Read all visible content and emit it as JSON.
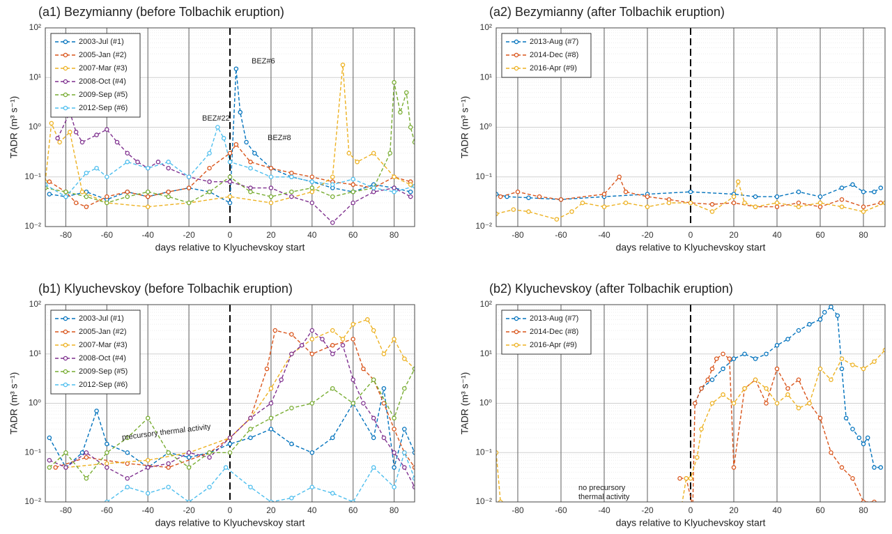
{
  "chart_data": [
    {
      "type": "line",
      "title": "(a1) Bezymianny (before Tolbachik eruption)",
      "x_label": "days relative to Klyuchevskoy start",
      "y_label": "TADR (m³ s⁻¹)",
      "xlim": [
        -90,
        90
      ],
      "xticks": [
        -80,
        -60,
        -40,
        -20,
        0,
        20,
        40,
        60,
        80
      ],
      "ylim": [
        0.01,
        100
      ],
      "log_y": true,
      "yticks": [
        {
          "value": 0.01,
          "label": "10⁻²"
        },
        {
          "value": 0.1,
          "label": "10⁻¹"
        },
        {
          "value": 1,
          "label": "10⁰"
        },
        {
          "value": 10,
          "label": "10¹"
        },
        {
          "value": 100,
          "label": "10²"
        }
      ],
      "grid": true,
      "legend": "upper left",
      "annotations": [
        {
          "text": "BEZ#6",
          "color": "#0072BD"
        },
        {
          "text": "BEZ#22",
          "color": "#4DBEEE"
        },
        {
          "text": "BEZ#8",
          "color": "#D95319"
        }
      ],
      "series": [
        {
          "name": "2003-Jul (#1)",
          "color": "#0072BD",
          "x": [
            -88,
            -80,
            -70,
            -60,
            -50,
            -40,
            -30,
            -20,
            -10,
            0,
            3,
            5,
            8,
            12,
            20,
            30,
            40,
            50,
            60,
            70,
            80,
            88
          ],
          "values": [
            0.045,
            0.04,
            0.05,
            0.035,
            0.05,
            0.04,
            0.05,
            0.06,
            0.05,
            0.03,
            15,
            2,
            0.5,
            0.3,
            0.15,
            0.1,
            0.08,
            0.06,
            0.05,
            0.07,
            0.06,
            0.05
          ]
        },
        {
          "name": "2005-Jan (#2)",
          "color": "#D95319",
          "x": [
            -88,
            -80,
            -75,
            -70,
            -60,
            -50,
            -40,
            -30,
            -20,
            -10,
            0,
            3,
            10,
            20,
            30,
            40,
            50,
            60,
            70,
            80,
            88
          ],
          "values": [
            0.08,
            0.05,
            0.03,
            0.025,
            0.04,
            0.05,
            0.04,
            0.05,
            0.06,
            0.15,
            0.3,
            0.45,
            0.2,
            0.15,
            0.12,
            0.1,
            0.08,
            0.07,
            0.06,
            0.1,
            0.08
          ]
        },
        {
          "name": "2007-Mar (#3)",
          "color": "#EDB120",
          "x": [
            -90,
            -87,
            -83,
            -78,
            -72,
            -60,
            -40,
            -20,
            0,
            20,
            40,
            50,
            55,
            58,
            62,
            70,
            80,
            88
          ],
          "values": [
            0.08,
            1.2,
            0.5,
            0.8,
            0.05,
            0.03,
            0.025,
            0.03,
            0.04,
            0.03,
            0.05,
            0.1,
            18,
            0.3,
            0.2,
            0.3,
            0.1,
            0.07
          ]
        },
        {
          "name": "2008-Oct (#4)",
          "color": "#7E2F8E",
          "x": [
            -84,
            -78,
            -75,
            -72,
            -65,
            -60,
            -55,
            -50,
            -45,
            -40,
            -35,
            -30,
            -20,
            -10,
            0,
            10,
            20,
            30,
            40,
            50,
            60,
            70,
            80,
            88
          ],
          "values": [
            0.6,
            2,
            0.8,
            0.5,
            0.7,
            0.9,
            0.5,
            0.3,
            0.2,
            0.15,
            0.2,
            0.15,
            0.1,
            0.08,
            0.08,
            0.06,
            0.06,
            0.04,
            0.03,
            0.012,
            0.03,
            0.05,
            0.06,
            0.04
          ]
        },
        {
          "name": "2009-Sep (#5)",
          "color": "#77AC30",
          "x": [
            -90,
            -80,
            -70,
            -60,
            -50,
            -40,
            -30,
            -20,
            -10,
            0,
            10,
            20,
            30,
            40,
            50,
            60,
            70,
            78,
            80,
            83,
            86,
            88,
            90
          ],
          "values": [
            0.06,
            0.05,
            0.04,
            0.03,
            0.04,
            0.05,
            0.04,
            0.03,
            0.05,
            0.1,
            0.05,
            0.04,
            0.05,
            0.06,
            0.04,
            0.05,
            0.06,
            0.3,
            8,
            2,
            5,
            1,
            0.5
          ]
        },
        {
          "name": "2012-Sep (#6)",
          "color": "#4DBEEE",
          "x": [
            -90,
            -80,
            -70,
            -65,
            -60,
            -50,
            -40,
            -30,
            -20,
            -10,
            -6,
            -3,
            0,
            10,
            20,
            30,
            40,
            50,
            60,
            70,
            80,
            90
          ],
          "values": [
            0.07,
            0.04,
            0.12,
            0.15,
            0.1,
            0.2,
            0.15,
            0.2,
            0.1,
            0.3,
            1,
            0.6,
            0.2,
            0.15,
            0.1,
            0.1,
            0.08,
            0.07,
            0.09,
            0.06,
            0.05,
            0.065
          ]
        }
      ]
    },
    {
      "type": "line",
      "title": "(a2) Bezymianny (after Tolbachik eruption)",
      "x_label": "days relative to Klyuchevskoy start",
      "y_label": "TADR (m³ s⁻¹)",
      "xlim": [
        -90,
        90
      ],
      "xticks": [
        -80,
        -60,
        -40,
        -20,
        0,
        20,
        40,
        60,
        80
      ],
      "ylim": [
        0.01,
        100
      ],
      "log_y": true,
      "yticks": [
        {
          "value": 0.01,
          "label": "10⁻²"
        },
        {
          "value": 0.1,
          "label": "10⁻¹"
        },
        {
          "value": 1,
          "label": "10⁰"
        },
        {
          "value": 10,
          "label": "10¹"
        },
        {
          "value": 100,
          "label": "10²"
        }
      ],
      "grid": true,
      "legend": "upper left",
      "series": [
        {
          "name": "2013-Aug (#7)",
          "color": "#0072BD",
          "x": [
            -90,
            -85,
            -75,
            -60,
            -40,
            -20,
            0,
            20,
            30,
            40,
            50,
            60,
            70,
            75,
            80,
            85,
            88
          ],
          "values": [
            0.045,
            0.04,
            0.038,
            0.035,
            0.04,
            0.045,
            0.05,
            0.045,
            0.04,
            0.04,
            0.05,
            0.04,
            0.06,
            0.07,
            0.05,
            0.05,
            0.06
          ]
        },
        {
          "name": "2014-Dec (#8)",
          "color": "#D95319",
          "x": [
            -88,
            -80,
            -70,
            -60,
            -40,
            -33,
            -30,
            -20,
            -10,
            0,
            10,
            20,
            30,
            40,
            50,
            60,
            70,
            80,
            88
          ],
          "values": [
            0.04,
            0.05,
            0.04,
            0.035,
            0.045,
            0.1,
            0.05,
            0.04,
            0.035,
            0.03,
            0.028,
            0.03,
            0.025,
            0.025,
            0.03,
            0.025,
            0.035,
            0.025,
            0.03
          ]
        },
        {
          "name": "2016-Apr (#9)",
          "color": "#EDB120",
          "x": [
            -90,
            -82,
            -75,
            -62,
            -55,
            -50,
            -40,
            -30,
            -20,
            -10,
            0,
            10,
            20,
            22,
            25,
            30,
            40,
            50,
            60,
            70,
            80,
            90
          ],
          "values": [
            0.018,
            0.022,
            0.02,
            0.014,
            0.02,
            0.03,
            0.025,
            0.03,
            0.025,
            0.03,
            0.03,
            0.02,
            0.04,
            0.08,
            0.03,
            0.025,
            0.03,
            0.025,
            0.03,
            0.025,
            0.02,
            0.03
          ]
        }
      ]
    },
    {
      "type": "line",
      "title": "(b1) Klyuchevskoy (before Tolbachik eruption)",
      "x_label": "days relative to Klyuchevskoy start",
      "y_label": "TADR (m³ s⁻¹)",
      "xlim": [
        -90,
        90
      ],
      "xticks": [
        -80,
        -60,
        -40,
        -20,
        0,
        20,
        40,
        60,
        80
      ],
      "ylim": [
        0.01,
        100
      ],
      "log_y": true,
      "yticks": [
        {
          "value": 0.01,
          "label": "10⁻²"
        },
        {
          "value": 0.1,
          "label": "10⁻¹"
        },
        {
          "value": 1,
          "label": "10⁰"
        },
        {
          "value": 10,
          "label": "10¹"
        },
        {
          "value": 100,
          "label": "10²"
        }
      ],
      "grid": true,
      "legend": "upper left",
      "annotations": [
        {
          "text": "precursory thermal activity",
          "color": "#222222"
        }
      ],
      "series": [
        {
          "name": "2003-Jul (#1)",
          "color": "#0072BD",
          "x": [
            -88,
            -80,
            -72,
            -65,
            -60,
            -50,
            -40,
            -30,
            -20,
            -10,
            0,
            10,
            20,
            30,
            40,
            50,
            60,
            70,
            75,
            80,
            85,
            90
          ],
          "values": [
            0.2,
            0.05,
            0.1,
            0.7,
            0.15,
            0.1,
            0.05,
            0.1,
            0.08,
            0.1,
            0.15,
            0.2,
            0.3,
            0.15,
            0.1,
            0.2,
            1,
            0.2,
            2,
            0.05,
            0.3,
            0.1
          ]
        },
        {
          "name": "2005-Jan (#2)",
          "color": "#D95319",
          "x": [
            -85,
            -70,
            -50,
            -30,
            -10,
            0,
            10,
            18,
            22,
            30,
            40,
            50,
            60,
            65,
            70,
            75,
            80,
            85,
            90
          ],
          "values": [
            0.05,
            0.08,
            0.06,
            0.05,
            0.1,
            0.2,
            0.5,
            5,
            30,
            25,
            10,
            15,
            20,
            5,
            3,
            1,
            0.3,
            0.1,
            0.05
          ]
        },
        {
          "name": "2007-Mar (#3)",
          "color": "#EDB120",
          "x": [
            -80,
            -60,
            -40,
            -20,
            0,
            10,
            20,
            30,
            40,
            50,
            55,
            60,
            67,
            70,
            75,
            80,
            85,
            90
          ],
          "values": [
            0.05,
            0.06,
            0.07,
            0.1,
            0.2,
            0.5,
            2,
            10,
            20,
            30,
            20,
            40,
            50,
            30,
            10,
            20,
            8,
            5
          ]
        },
        {
          "name": "2008-Oct (#4)",
          "color": "#7E2F8E",
          "x": [
            -88,
            -80,
            -70,
            -60,
            -50,
            -40,
            -30,
            -20,
            -10,
            0,
            10,
            20,
            25,
            30,
            35,
            40,
            45,
            50,
            55,
            60,
            65,
            70,
            75,
            80,
            85,
            90
          ],
          "values": [
            0.07,
            0.05,
            0.1,
            0.05,
            0.03,
            0.05,
            0.06,
            0.1,
            0.08,
            0.2,
            0.5,
            1,
            3,
            10,
            15,
            30,
            20,
            10,
            15,
            3,
            1,
            0.5,
            0.2,
            0.1,
            0.05,
            0.02
          ]
        },
        {
          "name": "2009-Sep (#5)",
          "color": "#77AC30",
          "x": [
            -88,
            -80,
            -70,
            -60,
            -50,
            -40,
            -30,
            -20,
            -10,
            0,
            10,
            20,
            30,
            40,
            50,
            60,
            70,
            80,
            85,
            90
          ],
          "values": [
            0.05,
            0.1,
            0.03,
            0.1,
            0.2,
            0.5,
            0.1,
            0.05,
            0.1,
            0.1,
            0.3,
            0.5,
            0.8,
            1,
            2,
            1,
            3,
            0.5,
            2,
            5
          ]
        },
        {
          "name": "2012-Sep (#6)",
          "color": "#4DBEEE",
          "x": [
            -60,
            -50,
            -40,
            -30,
            -20,
            -10,
            -2,
            10,
            20,
            30,
            40,
            50,
            60,
            70,
            80,
            85,
            90
          ],
          "values": [
            0.01,
            0.02,
            0.015,
            0.02,
            0.01,
            0.02,
            0.05,
            0.02,
            0.01,
            0.012,
            0.02,
            0.015,
            0.01,
            0.05,
            0.02,
            0.1,
            0.03
          ]
        }
      ]
    },
    {
      "type": "line",
      "title": "(b2) Klyuchevskoy (after Tolbachik eruption)",
      "x_label": "days relative to Klyuchevskoy start",
      "y_label": "TADR (m³ s⁻¹)",
      "xlim": [
        -90,
        90
      ],
      "xticks": [
        -80,
        -60,
        -40,
        -20,
        0,
        20,
        40,
        60,
        80
      ],
      "ylim": [
        0.01,
        100
      ],
      "log_y": true,
      "yticks": [
        {
          "value": 0.01,
          "label": "10⁻²"
        },
        {
          "value": 0.1,
          "label": "10⁻¹"
        },
        {
          "value": 1,
          "label": "10⁰"
        },
        {
          "value": 10,
          "label": "10¹"
        },
        {
          "value": 100,
          "label": "10²"
        }
      ],
      "grid": true,
      "legend": "upper left",
      "annotations": [
        {
          "lines": [
            "no precursory",
            "thermal activity"
          ],
          "color": "#222222"
        }
      ],
      "series": [
        {
          "name": "2013-Aug (#7)",
          "color": "#0072BD",
          "x": [
            2,
            5,
            10,
            15,
            20,
            25,
            30,
            35,
            40,
            45,
            50,
            55,
            60,
            62,
            65,
            68,
            70,
            72,
            75,
            78,
            80,
            82,
            85,
            88
          ],
          "values": [
            1,
            2,
            3,
            5,
            8,
            10,
            8,
            10,
            15,
            20,
            30,
            40,
            50,
            70,
            90,
            60,
            5,
            0.5,
            0.3,
            0.2,
            0.15,
            0.2,
            0.05,
            0.05
          ]
        },
        {
          "name": "2014-Dec (#8)",
          "color": "#D95319",
          "x": [
            -5,
            -2,
            1,
            2,
            5,
            8,
            10,
            12,
            15,
            18,
            20,
            25,
            30,
            35,
            40,
            45,
            50,
            55,
            60,
            65,
            70,
            75,
            80,
            85,
            90
          ],
          "values": [
            0.03,
            0.03,
            0.008,
            1,
            2,
            3,
            5,
            8,
            10,
            8,
            0.05,
            2,
            3,
            1,
            5,
            2,
            3,
            1,
            0.5,
            0.1,
            0.05,
            0.03,
            0.01,
            0.01,
            0.005
          ]
        },
        {
          "name": "2016-Apr (#9)",
          "color": "#EDB120",
          "x": [
            -90,
            -88,
            -85,
            -5,
            -2,
            0,
            3,
            5,
            10,
            15,
            20,
            25,
            30,
            35,
            40,
            45,
            50,
            55,
            60,
            65,
            70,
            75,
            80,
            85,
            90
          ],
          "values": [
            0.1,
            0.01,
            0.005,
            0.005,
            0.03,
            0.03,
            0.08,
            0.3,
            1,
            1.5,
            1,
            2,
            3,
            2,
            1,
            1.5,
            0.8,
            1,
            5,
            3,
            8,
            6,
            5,
            7,
            12
          ]
        }
      ]
    }
  ]
}
